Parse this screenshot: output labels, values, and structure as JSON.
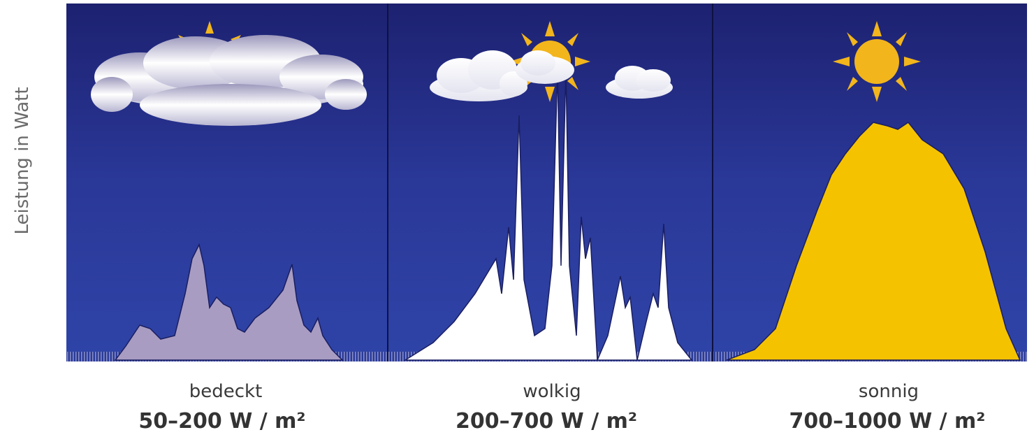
{
  "y_axis_label": "Leistung in Watt",
  "panels": [
    {
      "label": "bedeckt",
      "range": "50–200 W / m²"
    },
    {
      "label": "wolkig",
      "range": "200–700 W / m²"
    },
    {
      "label": "sonnig",
      "range": "700–1000 W / m²"
    }
  ]
}
